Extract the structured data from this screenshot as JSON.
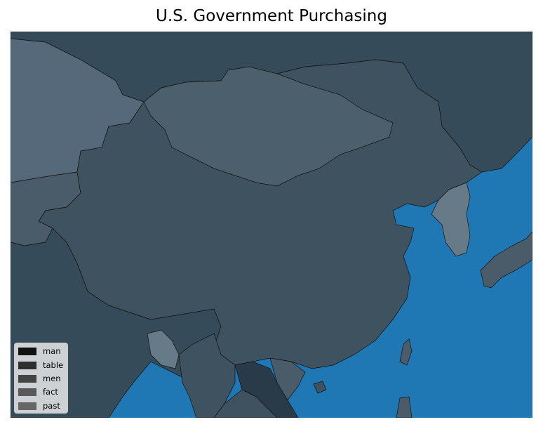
{
  "title": "U.S. Government Purchasing",
  "colors": {
    "ocean": "#1f77b4",
    "russia": "#354b5a",
    "china": "#3e5260",
    "mongolia": "#4b5f6c",
    "kazakhstan": "#56697a",
    "central_asia": "#4a5c6a",
    "india": "#354b5a",
    "korea": "#677a87",
    "japan": "#4a5c6a",
    "taiwan": "#4a5c6a",
    "bangladesh": "#677a87",
    "myanmar": "#3e5260",
    "laos": "#293b48",
    "vietnam": "#4a5c6a",
    "philippines": "#4a5c6a",
    "border": "#111111"
  },
  "legend": {
    "items": [
      {
        "label": "man",
        "color": "#111111"
      },
      {
        "label": "table",
        "color": "#2e2e2e"
      },
      {
        "label": "men",
        "color": "#444444"
      },
      {
        "label": "fact",
        "color": "#595959"
      },
      {
        "label": "past",
        "color": "#666666"
      }
    ]
  }
}
